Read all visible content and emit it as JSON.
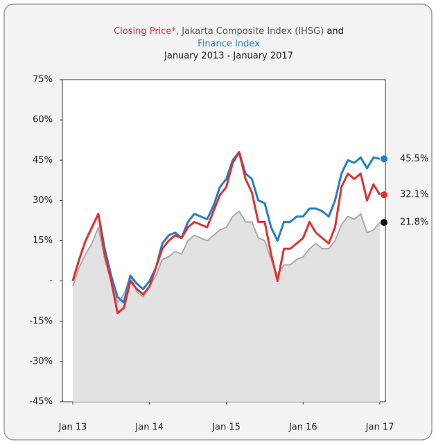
{
  "chart_data": {
    "type": "line",
    "title": [
      "Closing Price*,",
      "Jakarta Composite Index (IHSG)",
      "and",
      "Finance Index"
    ],
    "title_colors": [
      "#e03030",
      "#555555",
      "#111111",
      "#1f7fc8"
    ],
    "subtitle": "January 2013 - January 2017",
    "categories": [
      "Jan 13",
      null,
      null,
      null,
      null,
      null,
      null,
      null,
      null,
      null,
      null,
      null,
      "Jan 14",
      null,
      null,
      null,
      null,
      null,
      null,
      null,
      null,
      null,
      null,
      null,
      "Jan 15",
      null,
      null,
      null,
      null,
      null,
      null,
      null,
      null,
      null,
      null,
      null,
      "Jan 16",
      null,
      null,
      null,
      null,
      null,
      null,
      null,
      null,
      null,
      null,
      null,
      "Jan 17"
    ],
    "series": [
      {
        "color": "#aaaaaa",
        "area": true,
        "end_label": "21.8%",
        "end_color": "#111111",
        "values": [
          -2,
          5,
          10,
          14,
          20,
          8,
          0,
          -8,
          -5,
          2,
          -4,
          -6,
          -2,
          2,
          8,
          9,
          11,
          10,
          15,
          17,
          16,
          15,
          17,
          19,
          20,
          24,
          26,
          22,
          22,
          16,
          15,
          8,
          2,
          6,
          6,
          8,
          9,
          12,
          14,
          12,
          12,
          15,
          21,
          24,
          23,
          25,
          18,
          19,
          21.8
        ]
      },
      {
        "color": "#1f7fc8",
        "area": false,
        "end_label": "45.5%",
        "end_color": "#1f7fc8",
        "values": [
          0,
          8,
          15,
          20,
          25,
          12,
          2,
          -6,
          -8,
          2,
          -1,
          -3,
          0,
          5,
          14,
          17,
          18,
          16,
          22,
          25,
          24,
          23,
          28,
          35,
          38,
          45,
          48,
          40,
          38,
          30,
          29,
          20,
          15,
          22,
          22,
          24,
          24,
          27,
          27,
          26,
          24,
          30,
          40,
          45,
          44,
          46,
          42,
          46,
          45.5
        ]
      },
      {
        "color": "#e03030",
        "area": false,
        "end_label": "32.1%",
        "end_color": "#e03030",
        "values": [
          0,
          8,
          15,
          20,
          25,
          10,
          0,
          -12,
          -10,
          0,
          -3,
          -5,
          -2,
          5,
          12,
          15,
          17,
          16,
          20,
          22,
          21,
          20,
          26,
          32,
          35,
          44,
          48,
          38,
          33,
          22,
          22,
          10,
          0,
          12,
          12,
          14,
          16,
          22,
          18,
          16,
          14,
          20,
          35,
          40,
          38,
          40,
          30,
          36,
          32.1
        ]
      }
    ],
    "ylim": [
      -45,
      75
    ],
    "yticks": [
      {
        "value": -45,
        "label": "-45%"
      },
      {
        "value": -30,
        "label": "-30%"
      },
      {
        "value": -15,
        "label": "-15%"
      },
      {
        "value": 0,
        "label": "-"
      },
      {
        "value": 15,
        "label": "15%"
      },
      {
        "value": 30,
        "label": "30%"
      },
      {
        "value": 45,
        "label": "45%"
      },
      {
        "value": 60,
        "label": "60%"
      },
      {
        "value": 75,
        "label": "75%"
      }
    ],
    "grid": false
  }
}
